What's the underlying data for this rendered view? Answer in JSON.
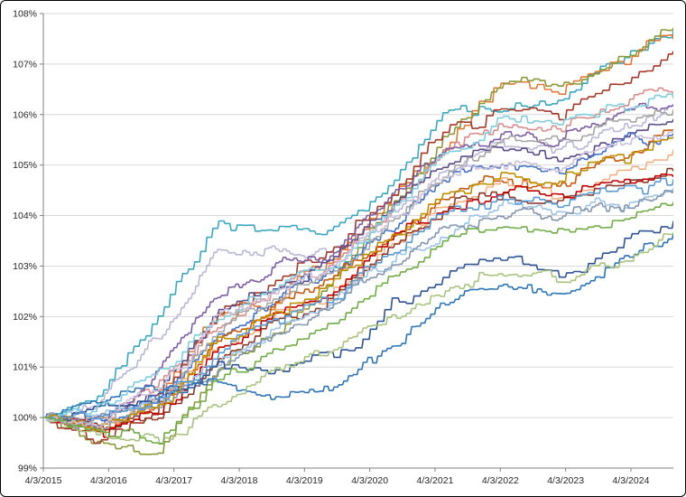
{
  "chart_data": {
    "type": "line",
    "title": "",
    "xlabel": "",
    "ylabel": "",
    "legend": "none",
    "grid": "horizontal",
    "ylim": [
      99,
      108
    ],
    "y_tick_labels": [
      "99%",
      "100%",
      "101%",
      "102%",
      "103%",
      "104%",
      "105%",
      "106%",
      "107%",
      "108%"
    ],
    "y_tick_values": [
      99,
      100,
      101,
      102,
      103,
      104,
      105,
      106,
      107,
      108
    ],
    "x_tick_labels": [
      "4/3/2015",
      "4/3/2016",
      "4/3/2017",
      "4/3/2018",
      "4/3/2019",
      "4/3/2020",
      "4/3/2021",
      "4/3/2022",
      "4/3/2023",
      "4/3/2024"
    ],
    "x_tick_years": [
      0,
      1,
      2,
      3,
      4,
      5,
      6,
      7,
      8,
      9
    ],
    "x_range_years": 9.65,
    "anchor_note": "anchors are % values sampled at 12 evenly spaced dates from 4/3/2015 to end of series (~late 2024)",
    "series": [
      {
        "name": "teal-bright",
        "color": "#3BA8BF",
        "anchors": [
          100,
          100.5,
          102.0,
          103.9,
          103.85,
          103.7,
          104.5,
          105.9,
          106.1,
          106.2,
          107.0,
          107.5
        ]
      },
      {
        "name": "periwinkle-light",
        "color": "#B8B8D9",
        "anchors": [
          100,
          100.3,
          101.6,
          103.2,
          103.3,
          103.25,
          103.8,
          104.9,
          105.4,
          105.3,
          105.8,
          106.1
        ]
      },
      {
        "name": "orange",
        "color": "#E07B39",
        "anchors": [
          100,
          99.8,
          100.4,
          102.0,
          102.4,
          103.1,
          104.3,
          105.4,
          106.6,
          106.5,
          107.1,
          107.7
        ]
      },
      {
        "name": "olive",
        "color": "#8A9A3B",
        "anchors": [
          100,
          99.5,
          99.35,
          101.0,
          101.7,
          102.6,
          104.1,
          105.6,
          106.7,
          106.5,
          107.0,
          107.75
        ]
      },
      {
        "name": "dark-red",
        "color": "#A43A2A",
        "anchors": [
          100,
          99.7,
          100.2,
          101.9,
          102.5,
          103.3,
          104.4,
          105.6,
          106.1,
          106.0,
          106.7,
          107.3
        ]
      },
      {
        "name": "rose",
        "color": "#D98C8C",
        "anchors": [
          100,
          99.9,
          100.5,
          101.8,
          102.5,
          103.1,
          104.1,
          105.3,
          105.8,
          105.7,
          106.2,
          106.55
        ]
      },
      {
        "name": "purple",
        "color": "#7E5FA4",
        "anchors": [
          100,
          99.8,
          100.9,
          102.3,
          102.9,
          103.3,
          104.2,
          105.3,
          105.6,
          105.4,
          105.9,
          106.25
        ]
      },
      {
        "name": "dark-purple",
        "color": "#5C4B8A",
        "anchors": [
          100,
          99.9,
          100.6,
          102.1,
          102.7,
          103.15,
          104.05,
          105.0,
          105.3,
          105.1,
          105.5,
          105.95
        ]
      },
      {
        "name": "blue",
        "color": "#4472C4",
        "anchors": [
          100,
          99.8,
          100.3,
          101.6,
          102.3,
          102.9,
          103.8,
          104.7,
          105.05,
          104.85,
          105.3,
          105.6
        ]
      },
      {
        "name": "orange-dark",
        "color": "#C55A11",
        "anchors": [
          100,
          99.7,
          100.15,
          101.4,
          102.1,
          102.7,
          103.6,
          104.4,
          104.7,
          104.5,
          105.1,
          105.65
        ]
      },
      {
        "name": "peach",
        "color": "#F4B183",
        "anchors": [
          100,
          99.9,
          100.25,
          101.25,
          101.95,
          102.45,
          103.35,
          104.15,
          104.55,
          104.35,
          104.85,
          105.3
        ]
      },
      {
        "name": "brick",
        "color": "#8C3B2E",
        "anchors": [
          100,
          99.8,
          100.05,
          101.15,
          101.85,
          102.35,
          103.25,
          104.05,
          104.35,
          104.25,
          104.65,
          104.9
        ]
      },
      {
        "name": "red",
        "color": "#C00000",
        "anchors": [
          100,
          99.75,
          100.1,
          101.3,
          102.0,
          102.5,
          103.4,
          104.2,
          104.5,
          104.35,
          104.7,
          104.95
        ]
      },
      {
        "name": "light-blue",
        "color": "#9DC3E6",
        "anchors": [
          100,
          100.1,
          100.35,
          101.1,
          101.7,
          102.2,
          103.0,
          103.8,
          104.1,
          104.0,
          104.3,
          104.55
        ]
      },
      {
        "name": "slate",
        "color": "#8496B0",
        "anchors": [
          100,
          100.0,
          100.3,
          101.0,
          101.6,
          102.1,
          102.9,
          103.7,
          104.05,
          103.9,
          104.2,
          104.45
        ]
      },
      {
        "name": "navy",
        "color": "#2F5496",
        "anchors": [
          100,
          100.2,
          100.45,
          101.0,
          100.9,
          101.1,
          102.1,
          102.9,
          103.2,
          102.8,
          103.4,
          103.95
        ]
      },
      {
        "name": "steel",
        "color": "#2E75B6",
        "anchors": [
          100,
          100.35,
          100.55,
          100.65,
          100.45,
          100.55,
          101.3,
          102.35,
          102.65,
          102.45,
          103.1,
          103.65
        ]
      },
      {
        "name": "light-green",
        "color": "#A9C47F",
        "anchors": [
          100,
          99.6,
          99.45,
          100.3,
          100.9,
          101.3,
          102.0,
          102.7,
          103.0,
          102.7,
          103.05,
          103.6
        ]
      },
      {
        "name": "cyan-light",
        "color": "#7FCDDD",
        "anchors": [
          100,
          100.2,
          100.9,
          102.0,
          102.6,
          103.0,
          104.0,
          105.3,
          105.9,
          105.8,
          106.1,
          106.4
        ]
      },
      {
        "name": "gray",
        "color": "#A6A6A6",
        "anchors": [
          100,
          99.9,
          100.4,
          101.7,
          102.3,
          102.8,
          103.8,
          104.9,
          105.5,
          105.45,
          105.8,
          106.05
        ]
      },
      {
        "name": "gold",
        "color": "#BF8F00",
        "anchors": [
          100,
          99.85,
          100.2,
          101.5,
          102.15,
          102.65,
          103.55,
          104.45,
          104.85,
          104.7,
          105.2,
          105.55
        ]
      },
      {
        "name": "lavender",
        "color": "#CCC0DA",
        "anchors": [
          100,
          99.95,
          100.55,
          101.9,
          102.55,
          103.0,
          103.9,
          104.8,
          105.1,
          104.9,
          105.35,
          105.7
        ]
      },
      {
        "name": "denim",
        "color": "#5B9BD5",
        "anchors": [
          100,
          100.05,
          100.4,
          101.2,
          101.85,
          102.35,
          103.2,
          104.0,
          104.35,
          104.2,
          104.55,
          104.8
        ]
      },
      {
        "name": "forest",
        "color": "#70AD47",
        "anchors": [
          100,
          99.7,
          99.6,
          100.6,
          101.3,
          101.9,
          102.7,
          103.5,
          103.85,
          103.6,
          103.9,
          104.3
        ]
      }
    ],
    "colors": {
      "gridline": "#D9D9D9",
      "axis": "#808080",
      "tick_text": "#262626",
      "background": "#FFFFFF",
      "border": "#000000"
    }
  }
}
